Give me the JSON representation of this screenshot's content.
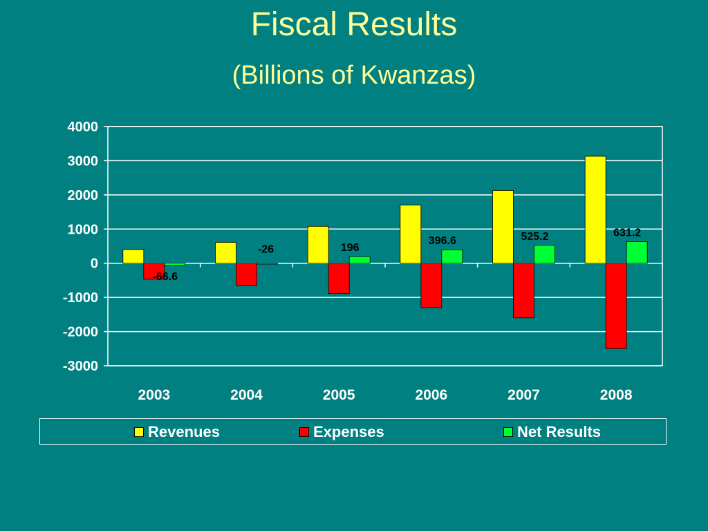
{
  "chart_data": {
    "type": "bar",
    "title": "Fiscal Results",
    "subtitle": "(Billions of Kwanzas)",
    "categories": [
      "2003",
      "2004",
      "2005",
      "2006",
      "2007",
      "2008"
    ],
    "ylim": [
      -3000,
      4000
    ],
    "yticks": [
      4000,
      3000,
      2000,
      1000,
      0,
      -1000,
      -2000,
      -3000
    ],
    "grid": true,
    "legend_position": "bottom",
    "series": [
      {
        "name": "Revenues",
        "color": "#ffff00",
        "values": [
          400,
          610,
          1080,
          1700,
          2130,
          3130
        ]
      },
      {
        "name": "Expenses",
        "color": "#ff0000",
        "values": [
          -466.6,
          -650,
          -890,
          -1300,
          -1600,
          -2500
        ]
      },
      {
        "name": "Net Results",
        "color": "#00ff33",
        "values": [
          -66.6,
          -26,
          196,
          396.6,
          525.2,
          631.2
        ],
        "data_labels": [
          "-66.6",
          "-26",
          "196",
          "396.6",
          "525.2",
          "631.2"
        ]
      }
    ]
  }
}
